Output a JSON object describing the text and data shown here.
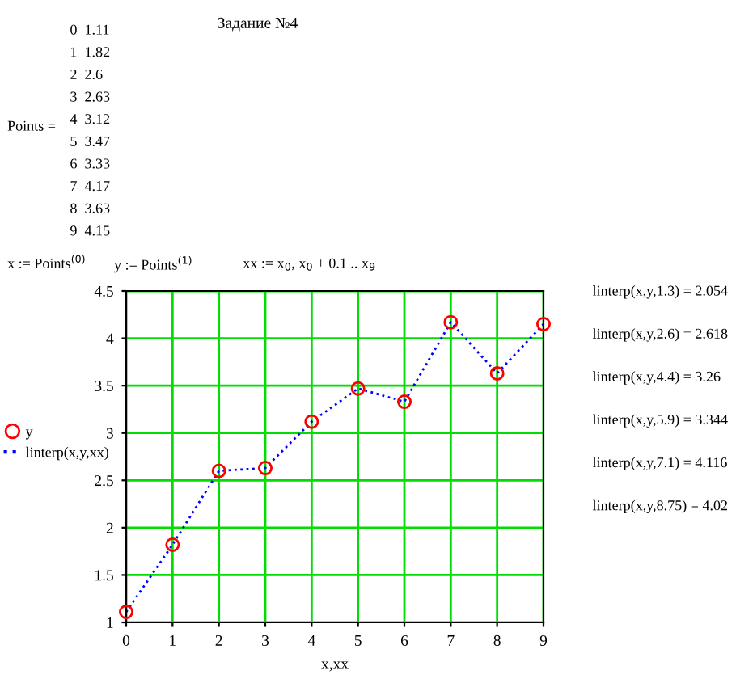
{
  "chart_data": {
    "type": "line",
    "title": "Задание №4",
    "xlabel": "x,xx",
    "x": [
      0,
      1,
      2,
      3,
      4,
      5,
      6,
      7,
      8,
      9
    ],
    "series": [
      {
        "name": "y",
        "type": "scatter",
        "marker": "circle",
        "color": "#ff0000",
        "values": [
          1.11,
          1.82,
          2.6,
          2.63,
          3.12,
          3.47,
          3.33,
          4.17,
          3.63,
          4.15
        ]
      },
      {
        "name": "linterp(x,y,xx)",
        "line_style": "dotted",
        "marker": "none",
        "color": "#0000ff",
        "values": [
          1.11,
          1.82,
          2.6,
          2.63,
          3.12,
          3.47,
          3.33,
          4.17,
          3.63,
          4.15
        ]
      }
    ],
    "xlim": [
      0,
      9
    ],
    "xticks": [
      0,
      1,
      2,
      3,
      4,
      5,
      6,
      7,
      8,
      9
    ],
    "ylim": [
      1,
      4.5
    ],
    "yticks": [
      1,
      1.5,
      2,
      2.5,
      3,
      3.5,
      4,
      4.5
    ],
    "grid": true,
    "legend": "left",
    "annotations": [
      "Points =",
      "0  1.11",
      "1  1.82",
      "2  2.6",
      "3  2.63",
      "4  3.12",
      "5  3.47",
      "6  3.33",
      "7  4.17",
      "8  3.63",
      "9  4.15",
      "x := Points$^{(0)}$",
      "y := Points$^{(1)}$",
      "xx := x$_{0}$, x$_{0}$ + 0.1 .. x$_{9}$",
      "linterp(x,y,1.3) = 2.054",
      "linterp(x,y,2.6) = 2.618",
      "linterp(x,y,4.4) = 3.26",
      "linterp(x,y,5.9) = 3.344",
      "linterp(x,y,7.1) = 4.116",
      "linterp(x,y,8.75) = 4.02"
    ]
  }
}
